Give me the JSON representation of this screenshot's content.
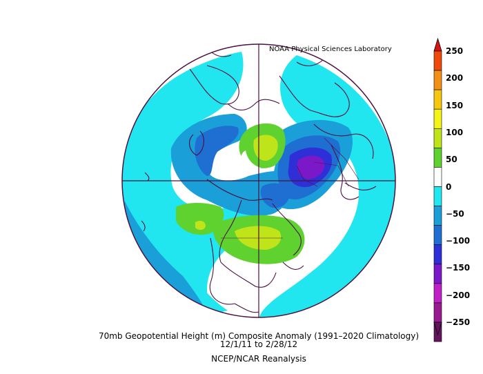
{
  "credit": "NOAA Physical Sciences Laboratory",
  "caption": {
    "line1": "70mb Geopotential Height (m) Composite Anomaly (1991–2020 Climatology)",
    "line2": "12/1/11   to 2/28/12",
    "line3": "NCEP/NCAR Reanalysis"
  },
  "colorbar": {
    "labels": [
      "250",
      "200",
      "150",
      "100",
      "50",
      "0",
      "−50",
      "−100",
      "−150",
      "−200",
      "−250"
    ],
    "colors": [
      "#d7150e",
      "#ee4a0c",
      "#f28f17",
      "#f7c70f",
      "#f4f417",
      "#bfe51a",
      "#5fd22f",
      "#ffffff",
      "#1fe8f0",
      "#1a9fd8",
      "#1f6ed2",
      "#2f2fd8",
      "#7b18c8",
      "#c020c8",
      "#9a1b8f",
      "#64145c"
    ]
  },
  "map": {
    "projection": "north-polar-stereographic",
    "colors": {
      "ocean_bg": "#21e6ef",
      "neutral": "#ffffff",
      "neg50": "#1a9fd8",
      "neg100": "#1f6ed2",
      "neg150": "#2f2fd8",
      "neg200": "#7b18c8",
      "neg250": "#c020c8",
      "pos50": "#5fd22f",
      "pos100": "#bfe51a",
      "pos150": "#f4f417",
      "coast": "#4a1040"
    }
  }
}
